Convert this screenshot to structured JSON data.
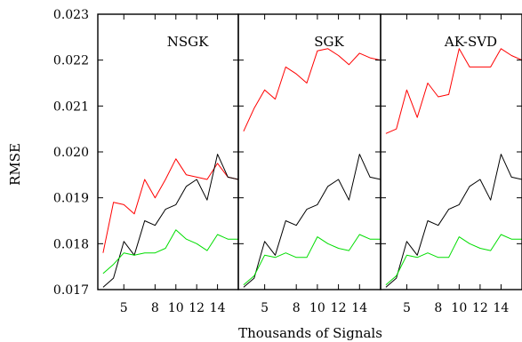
{
  "chart_data": [
    {
      "type": "line",
      "title": "NSGK",
      "x": [
        3,
        4,
        5,
        6,
        7,
        8,
        9,
        10,
        11,
        12,
        13,
        14,
        15,
        16
      ],
      "series": [
        {
          "color": "#ff0000",
          "values": [
            0.0178,
            0.0189,
            0.01885,
            0.01865,
            0.0194,
            0.019,
            0.0194,
            0.01985,
            0.0195,
            0.01945,
            0.0194,
            0.01975,
            0.01945,
            0.0194
          ]
        },
        {
          "color": "#000000",
          "values": [
            0.01705,
            0.01725,
            0.01805,
            0.01775,
            0.0185,
            0.0184,
            0.01875,
            0.01885,
            0.01925,
            0.0194,
            0.01895,
            0.01995,
            0.01945,
            0.0194
          ]
        },
        {
          "color": "#00dd00",
          "values": [
            0.01735,
            0.01755,
            0.0178,
            0.01775,
            0.0178,
            0.0178,
            0.0179,
            0.0183,
            0.0181,
            0.018,
            0.01785,
            0.0182,
            0.0181,
            0.0181
          ]
        }
      ]
    },
    {
      "type": "line",
      "title": "SGK",
      "x": [
        3,
        4,
        5,
        6,
        7,
        8,
        9,
        10,
        11,
        12,
        13,
        14,
        15,
        16
      ],
      "series": [
        {
          "color": "#ff0000",
          "values": [
            0.02045,
            0.02095,
            0.02135,
            0.02115,
            0.02185,
            0.0217,
            0.0215,
            0.0222,
            0.02225,
            0.0221,
            0.0219,
            0.02215,
            0.02205,
            0.022
          ]
        },
        {
          "color": "#000000",
          "values": [
            0.01705,
            0.01725,
            0.01805,
            0.01775,
            0.0185,
            0.0184,
            0.01875,
            0.01885,
            0.01925,
            0.0194,
            0.01895,
            0.01995,
            0.01945,
            0.0194
          ]
        },
        {
          "color": "#00dd00",
          "values": [
            0.0171,
            0.0173,
            0.01775,
            0.0177,
            0.0178,
            0.0177,
            0.0177,
            0.01815,
            0.018,
            0.0179,
            0.01785,
            0.0182,
            0.0181,
            0.0181
          ]
        }
      ]
    },
    {
      "type": "line",
      "title": "AK-SVD",
      "x": [
        3,
        4,
        5,
        6,
        7,
        8,
        9,
        10,
        11,
        12,
        13,
        14,
        15,
        16
      ],
      "series": [
        {
          "color": "#ff0000",
          "values": [
            0.0204,
            0.0205,
            0.02135,
            0.02075,
            0.0215,
            0.0212,
            0.02125,
            0.02225,
            0.02185,
            0.02185,
            0.02185,
            0.02225,
            0.0221,
            0.022
          ]
        },
        {
          "color": "#000000",
          "values": [
            0.01705,
            0.01725,
            0.01805,
            0.01775,
            0.0185,
            0.0184,
            0.01875,
            0.01885,
            0.01925,
            0.0194,
            0.01895,
            0.01995,
            0.01945,
            0.0194
          ]
        },
        {
          "color": "#00dd00",
          "values": [
            0.0171,
            0.0173,
            0.01775,
            0.0177,
            0.0178,
            0.0177,
            0.0177,
            0.01815,
            0.018,
            0.0179,
            0.01785,
            0.0182,
            0.0181,
            0.0181
          ]
        }
      ]
    }
  ],
  "axes": {
    "ylabel": "RMSE",
    "xlabel": "Thousands of Signals",
    "ylim": [
      0.017,
      0.023
    ],
    "xlim": [
      2.5,
      16
    ],
    "y_ticks": [
      0.017,
      0.018,
      0.019,
      0.02,
      0.021,
      0.022,
      0.023
    ],
    "y_tick_labels": [
      "0.017",
      "0.018",
      "0.019",
      "0.020",
      "0.021",
      "0.022",
      "0.023"
    ],
    "x_ticks": [
      5,
      8,
      10,
      12,
      14
    ],
    "x_tick_labels": [
      "5",
      "8",
      "10",
      "12",
      "14"
    ]
  }
}
